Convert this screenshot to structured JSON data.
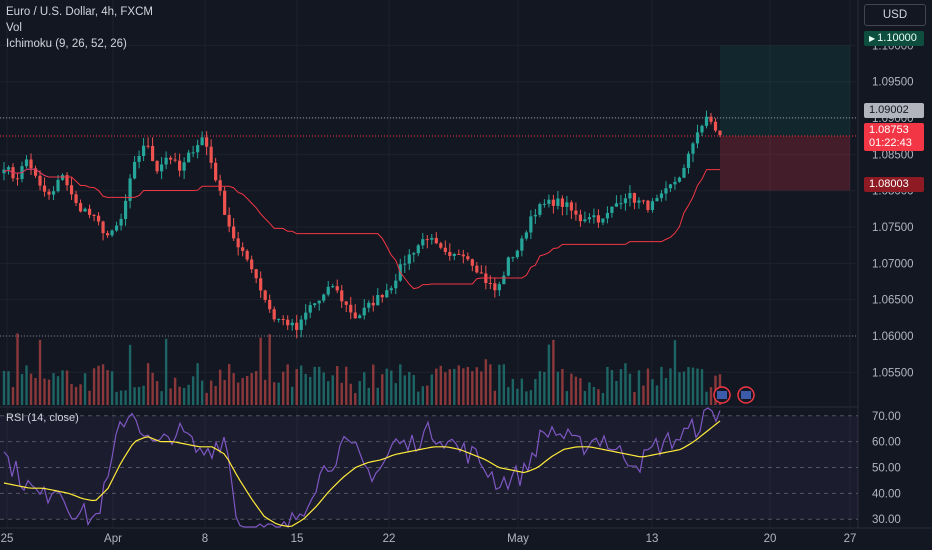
{
  "header": {
    "title": "Euro / U.S. Dollar, 4h, FXCM",
    "vol_label": "Vol",
    "ichimoku_label": "Ichimoku (9, 26, 52, 26)",
    "rsi_label": "RSI (14, close)",
    "currency_button": "USD"
  },
  "price_tags": {
    "target": "1.10000",
    "high": "1.09002",
    "last": "1.08753",
    "countdown": "01:22:43",
    "stop": "1.08003"
  },
  "colors": {
    "background": "#131722",
    "up": "#26a69a",
    "down": "#ef5350",
    "conversion_line": "#2962ff",
    "base_line": "#f23645",
    "rsi_line": "#7e57c2",
    "rsi_ma": "#ffeb3b",
    "cloud_bull": "#1b5e20",
    "cloud_bear": "#7f1d1d"
  },
  "chart_data": {
    "type": "candlestick",
    "symbol": "Euro / U.S. Dollar",
    "timeframe": "4h",
    "source": "FXCM",
    "y_axis": {
      "range": [
        1.0505,
        1.1035
      ],
      "ticks": [
        "1.10000",
        "1.09500",
        "1.09000",
        "1.08500",
        "1.08000",
        "1.07500",
        "1.07000",
        "1.06500",
        "1.06000",
        "1.05500"
      ]
    },
    "x_axis_labels": [
      "25",
      "Apr",
      "8",
      "15",
      "22",
      "May",
      "13",
      "20",
      "27"
    ],
    "price_path": [
      1.0835,
      1.0815,
      1.0845,
      1.0805,
      1.079,
      1.0825,
      1.0782,
      1.0772,
      1.0755,
      1.0735,
      1.076,
      1.083,
      1.0868,
      1.083,
      1.085,
      1.0826,
      1.0856,
      1.0875,
      1.082,
      1.076,
      1.0718,
      1.07,
      1.066,
      1.0625,
      1.062,
      1.0608,
      1.064,
      1.065,
      1.067,
      1.0645,
      1.0625,
      1.064,
      1.0655,
      1.067,
      1.07,
      1.072,
      1.0738,
      1.072,
      1.0705,
      1.0718,
      1.07,
      1.0677,
      1.066,
      1.0705,
      1.0724,
      1.077,
      1.078,
      1.0786,
      1.0778,
      1.076,
      1.0768,
      1.0758,
      1.078,
      1.0795,
      1.0785,
      1.0778,
      1.079,
      1.081,
      1.083,
      1.0882,
      1.09,
      1.0875
    ],
    "ichimoku": {
      "conversion": 9,
      "base": 26,
      "span_b": 52,
      "displacement": 26
    },
    "rsi": {
      "period": 14,
      "levels": [
        "70.00",
        "60.00",
        "50.00",
        "40.00",
        "30.00"
      ],
      "range": [
        27,
        73
      ],
      "rsi_path": [
        55,
        48,
        42,
        38,
        44,
        35,
        32,
        30,
        45,
        68,
        72,
        60,
        58,
        64,
        62,
        55,
        58,
        62,
        28,
        25,
        26,
        24,
        28,
        35,
        45,
        52,
        58,
        56,
        48,
        50,
        60,
        58,
        62,
        64,
        61,
        57,
        55,
        50,
        44,
        46,
        48,
        60,
        65,
        62,
        58,
        60,
        62,
        56,
        54,
        52,
        58,
        60,
        62,
        65,
        70,
        72
      ],
      "ma_path": [
        44,
        43,
        42,
        42,
        41,
        40,
        38,
        37,
        42,
        52,
        60,
        62,
        60,
        60,
        59,
        58,
        58,
        55,
        46,
        38,
        31,
        28,
        27,
        30,
        35,
        41,
        46,
        50,
        52,
        53,
        55,
        56,
        57,
        58,
        58,
        57,
        55,
        53,
        50,
        49,
        48,
        50,
        54,
        57,
        58,
        58,
        57,
        56,
        55,
        54,
        55,
        56,
        57,
        60,
        64,
        68
      ]
    },
    "position": {
      "entry": "1.08753",
      "target": "1.10000",
      "stop": "1.08003"
    }
  }
}
